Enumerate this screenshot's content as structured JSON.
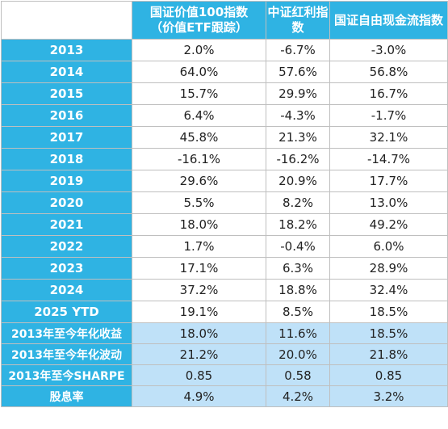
{
  "table": {
    "headers": [
      "",
      "国证价值100指数\n（价值ETF跟踪）",
      "中证红利指数",
      "国证自由现金流指数"
    ],
    "rows": [
      {
        "label": "2013",
        "values": [
          "2.0%",
          "-6.7%",
          "-3.0%"
        ]
      },
      {
        "label": "2014",
        "values": [
          "64.0%",
          "57.6%",
          "56.8%"
        ]
      },
      {
        "label": "2015",
        "values": [
          "15.7%",
          "29.9%",
          "16.7%"
        ]
      },
      {
        "label": "2016",
        "values": [
          "6.4%",
          "-4.3%",
          "-1.7%"
        ]
      },
      {
        "label": "2017",
        "values": [
          "45.8%",
          "21.3%",
          "32.1%"
        ]
      },
      {
        "label": "2018",
        "values": [
          "-16.1%",
          "-16.2%",
          "-14.7%"
        ]
      },
      {
        "label": "2019",
        "values": [
          "29.6%",
          "20.9%",
          "17.7%"
        ]
      },
      {
        "label": "2020",
        "values": [
          "5.5%",
          "8.2%",
          "13.0%"
        ]
      },
      {
        "label": "2021",
        "values": [
          "18.0%",
          "18.2%",
          "49.2%"
        ]
      },
      {
        "label": "2022",
        "values": [
          "1.7%",
          "-0.4%",
          "6.0%"
        ]
      },
      {
        "label": "2023",
        "values": [
          "17.1%",
          "6.3%",
          "28.9%"
        ]
      },
      {
        "label": "2024",
        "values": [
          "37.2%",
          "18.8%",
          "32.4%"
        ]
      },
      {
        "label": "2025 YTD",
        "values": [
          "19.1%",
          "8.5%",
          "18.5%"
        ]
      }
    ],
    "stats": [
      {
        "label": "2013年至今年化收益",
        "values": [
          "18.0%",
          "11.6%",
          "18.5%"
        ]
      },
      {
        "label": "2013年至今年化波动",
        "values": [
          "21.2%",
          "20.0%",
          "21.8%"
        ]
      },
      {
        "label": "2013年至今SHARPE",
        "values": [
          "0.85",
          "0.58",
          "0.85"
        ]
      },
      {
        "label": "股息率",
        "values": [
          "4.9%",
          "4.2%",
          "3.2%"
        ]
      }
    ]
  },
  "colors": {
    "header_bg": "#2fb3e3",
    "stat_bg": "#bfe1f8",
    "border": "#bfbfbf"
  }
}
